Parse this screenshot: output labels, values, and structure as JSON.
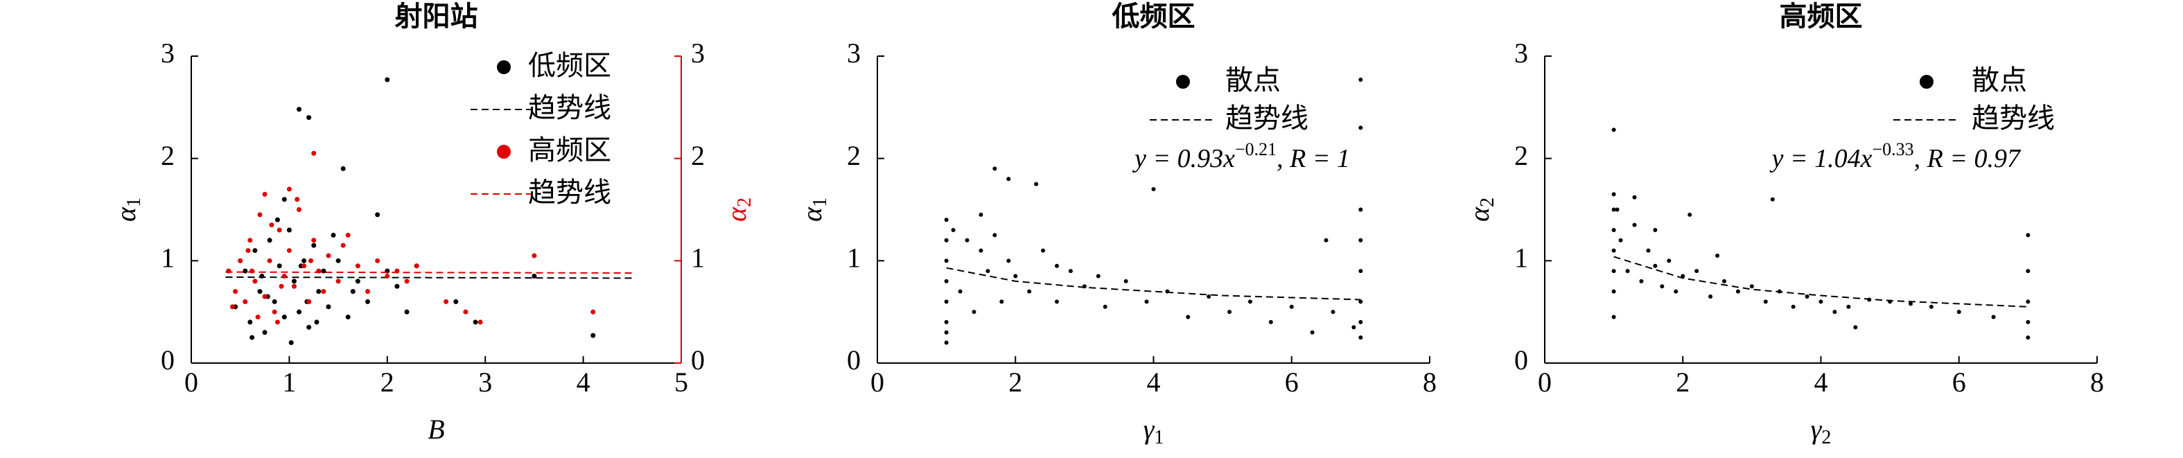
{
  "chart_data": [
    {
      "type": "scatter",
      "title": "射阳站",
      "xlabel": "B",
      "ylabel": {
        "symbol": "α",
        "subscript": "1"
      },
      "y2label": {
        "symbol": "α",
        "subscript": "2"
      },
      "y2color": "#e00000",
      "xlim": [
        0,
        5
      ],
      "xticks": [
        0,
        1,
        2,
        3,
        4,
        5
      ],
      "ylim": [
        0,
        3
      ],
      "yticks": [
        0,
        1,
        2,
        3
      ],
      "y2lim": [
        0,
        3
      ],
      "y2ticks": [
        0,
        1,
        2,
        3
      ],
      "legend": "upper right",
      "series": [
        {
          "name": "低频区",
          "color": "#000000",
          "marker": "dot",
          "x": [
            0.45,
            0.55,
            0.6,
            0.65,
            0.7,
            0.75,
            0.8,
            0.85,
            0.9,
            0.95,
            1.0,
            1.05,
            1.1,
            1.15,
            1.2,
            1.25,
            1.3,
            1.35,
            1.4,
            1.5,
            1.6,
            1.7,
            1.8,
            1.9,
            2.0,
            2.1,
            2.2,
            0.5,
            0.62,
            0.78,
            0.88,
            1.02,
            1.12,
            1.28,
            1.45,
            1.65,
            0.72,
            0.95,
            1.18,
            1.1,
            1.2,
            2.0,
            2.9,
            3.5,
            4.1,
            2.7,
            1.55,
            2.3
          ],
          "values": [
            0.55,
            0.9,
            0.4,
            1.1,
            0.7,
            0.3,
            1.2,
            0.6,
            0.95,
            0.45,
            1.3,
            0.8,
            0.5,
            1.0,
            0.35,
            1.15,
            0.7,
            0.9,
            0.55,
            1.0,
            0.45,
            0.8,
            0.6,
            1.45,
            0.9,
            0.75,
            0.5,
            1.0,
            0.25,
            0.65,
            1.4,
            0.2,
            0.95,
            0.4,
            1.25,
            0.7,
            0.85,
            1.6,
            0.6,
            2.48,
            2.4,
            2.77,
            0.4,
            0.85,
            0.27,
            0.6,
            1.9,
            0.95
          ]
        },
        {
          "name": "趋势线",
          "color": "#000000",
          "line_style": "dashed",
          "x": [
            0.35,
            4.5
          ],
          "values": [
            0.84,
            0.83
          ]
        },
        {
          "name": "高频区",
          "color": "#e00000",
          "marker": "dot",
          "axis": "y2",
          "x": [
            0.38,
            0.45,
            0.5,
            0.55,
            0.6,
            0.65,
            0.7,
            0.75,
            0.8,
            0.85,
            0.9,
            0.95,
            1.0,
            1.05,
            1.1,
            1.15,
            1.2,
            1.25,
            1.3,
            1.4,
            1.5,
            1.6,
            1.7,
            1.8,
            1.9,
            2.0,
            2.1,
            2.2,
            2.3,
            0.42,
            0.58,
            0.68,
            0.82,
            0.92,
            1.08,
            1.22,
            1.35,
            1.55,
            0.75,
            0.88,
            1.0,
            1.25,
            2.95,
            3.5,
            4.1,
            2.8,
            2.6,
            0.62
          ],
          "values": [
            0.9,
            0.7,
            1.0,
            0.6,
            1.2,
            0.8,
            1.45,
            0.65,
            1.0,
            0.5,
            1.3,
            0.85,
            1.1,
            0.75,
            1.5,
            0.95,
            0.6,
            1.2,
            0.9,
            1.05,
            0.8,
            1.25,
            0.95,
            0.7,
            1.0,
            0.85,
            0.9,
            0.8,
            0.95,
            0.55,
            1.1,
            0.45,
            1.35,
            0.75,
            1.6,
            1.0,
            0.7,
            1.15,
            1.65,
            0.4,
            1.7,
            2.05,
            0.4,
            1.05,
            0.5,
            0.5,
            0.6,
            0.9
          ]
        },
        {
          "name": "趋势线",
          "color": "#e00000",
          "line_style": "dashed",
          "axis": "y2",
          "x": [
            0.35,
            4.5
          ],
          "values": [
            0.89,
            0.88
          ]
        }
      ]
    },
    {
      "type": "scatter",
      "title": "低频区",
      "xlabel": {
        "symbol": "γ",
        "subscript": "1"
      },
      "ylabel": {
        "symbol": "α",
        "subscript": "1"
      },
      "xlim": [
        0,
        8
      ],
      "xticks": [
        0,
        2,
        4,
        6,
        8
      ],
      "ylim": [
        0,
        3
      ],
      "yticks": [
        0,
        1,
        2,
        3
      ],
      "legend": "upper right",
      "annotation": {
        "prefix": "y = 0.93x",
        "exponent": "−0.21",
        "suffix": ", R = 1"
      },
      "series": [
        {
          "name": "散点",
          "color": "#000000",
          "marker": "dot",
          "x": [
            1,
            1,
            1,
            1,
            1,
            1,
            1,
            1,
            1.1,
            1.2,
            1.3,
            1.4,
            1.5,
            1.6,
            1.7,
            1.8,
            1.9,
            2.0,
            2.2,
            2.4,
            2.6,
            2.8,
            3.0,
            3.3,
            3.6,
            3.9,
            4.2,
            4.5,
            4.8,
            5.1,
            5.4,
            5.7,
            6.0,
            6.3,
            6.6,
            6.9,
            7,
            7,
            7,
            7,
            7,
            7,
            7,
            7,
            1.7,
            2.3,
            1.9,
            4.0,
            6.5,
            1.5,
            2.6,
            3.2
          ],
          "values": [
            0.2,
            0.4,
            0.6,
            0.8,
            1.0,
            1.2,
            1.4,
            0.3,
            1.3,
            0.7,
            1.2,
            0.5,
            1.1,
            0.9,
            1.25,
            0.6,
            1.0,
            0.85,
            0.7,
            1.1,
            0.6,
            0.9,
            0.75,
            0.55,
            0.8,
            0.6,
            0.7,
            0.45,
            0.65,
            0.5,
            0.6,
            0.4,
            0.55,
            0.3,
            0.5,
            0.35,
            0.25,
            0.4,
            0.6,
            0.9,
            1.2,
            1.5,
            2.3,
            2.77,
            1.9,
            1.75,
            1.8,
            1.7,
            1.2,
            1.45,
            0.95,
            0.85
          ]
        },
        {
          "name": "趋势线",
          "color": "#000000",
          "line_style": "dashed",
          "x": [
            1,
            2,
            3,
            4,
            5,
            6,
            7
          ],
          "values": [
            0.93,
            0.8,
            0.74,
            0.7,
            0.66,
            0.64,
            0.62
          ]
        }
      ]
    },
    {
      "type": "scatter",
      "title": "高频区",
      "xlabel": {
        "symbol": "γ",
        "subscript": "2"
      },
      "ylabel": {
        "symbol": "α",
        "subscript": "2"
      },
      "xlim": [
        0,
        8
      ],
      "xticks": [
        0,
        2,
        4,
        6,
        8
      ],
      "ylim": [
        0,
        3
      ],
      "yticks": [
        0,
        1,
        2,
        3
      ],
      "legend": "upper right",
      "annotation": {
        "prefix": "y = 1.04x",
        "exponent": "−0.33",
        "suffix": ", R = 0.97"
      },
      "series": [
        {
          "name": "散点",
          "color": "#000000",
          "marker": "dot",
          "x": [
            1,
            1,
            1,
            1,
            1,
            1,
            1,
            1,
            1.1,
            1.2,
            1.3,
            1.4,
            1.5,
            1.6,
            1.7,
            1.8,
            1.9,
            2.0,
            2.2,
            2.4,
            2.6,
            2.8,
            3.0,
            3.2,
            3.4,
            3.6,
            3.8,
            4.0,
            4.2,
            4.4,
            4.7,
            5.0,
            5.3,
            5.6,
            6.0,
            6.5,
            7,
            7,
            7,
            7,
            7,
            1.3,
            2.1,
            3.3,
            1.05,
            1.6,
            2.5,
            4.5
          ],
          "values": [
            0.45,
            0.7,
            0.9,
            1.1,
            1.3,
            1.5,
            1.65,
            2.28,
            1.2,
            0.9,
            1.35,
            0.8,
            1.1,
            0.95,
            0.75,
            1.0,
            0.7,
            0.85,
            0.9,
            0.65,
            0.8,
            0.7,
            0.75,
            0.6,
            0.7,
            0.55,
            0.65,
            0.6,
            0.5,
            0.55,
            0.62,
            0.6,
            0.58,
            0.55,
            0.5,
            0.45,
            0.25,
            0.4,
            0.6,
            0.9,
            1.25,
            1.62,
            1.45,
            1.6,
            1.5,
            1.3,
            1.05,
            0.35
          ]
        },
        {
          "name": "趋势线",
          "color": "#000000",
          "line_style": "dashed",
          "x": [
            1,
            2,
            3,
            4,
            5,
            6,
            7
          ],
          "values": [
            1.04,
            0.83,
            0.72,
            0.66,
            0.61,
            0.58,
            0.55
          ]
        }
      ]
    }
  ]
}
